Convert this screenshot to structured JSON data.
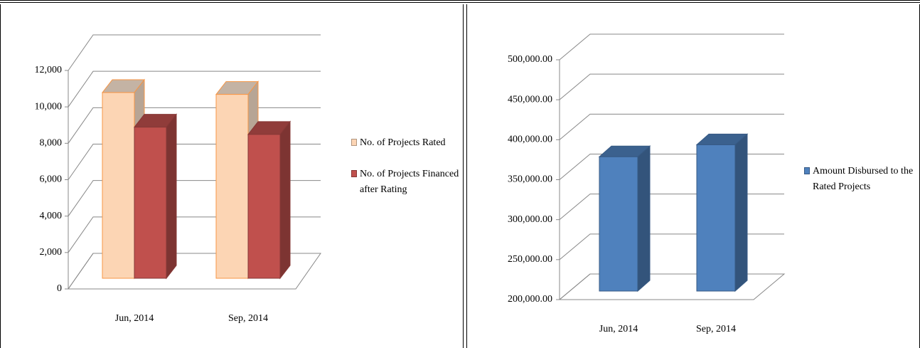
{
  "chart_data": [
    {
      "type": "bar3d",
      "categories": [
        "Jun, 2014",
        "Sep, 2014"
      ],
      "series": [
        {
          "name": "No. of Projects Rated",
          "color": "#fcd5b4",
          "values": [
            10200,
            10100
          ]
        },
        {
          "name": "No. of Projects Financed after Rating",
          "color": "#c0504d",
          "values": [
            8300,
            7900
          ]
        }
      ],
      "ylim": [
        0,
        12000
      ],
      "yticks": [
        0,
        {
          "value": 2000,
          "label": "2,000"
        },
        {
          "value": 4000,
          "label": "4,000"
        },
        {
          "value": 6000,
          "label": "6,000"
        },
        {
          "value": 8000,
          "label": "8,000"
        },
        {
          "value": 10000,
          "label": "10,000"
        },
        {
          "value": 12000,
          "label": "12,000"
        }
      ],
      "grid": true
    },
    {
      "type": "bar3d",
      "categories": [
        "Jun, 2014",
        "Sep, 2014"
      ],
      "series": [
        {
          "name": "Amount Disbursed to the Rated Projects",
          "color": "#4f81bd",
          "values": [
            368000,
            383000
          ]
        }
      ],
      "ylim": [
        200000,
        500000
      ],
      "yticks": [
        {
          "value": 200000,
          "label": "200,000.00"
        },
        {
          "value": 250000,
          "label": "250,000.00"
        },
        {
          "value": 300000,
          "label": "300,000.00"
        },
        {
          "value": 350000,
          "label": "350,000.00"
        },
        {
          "value": 400000,
          "label": "400,000.00"
        },
        {
          "value": 450000,
          "label": "450,000.00"
        },
        {
          "value": 500000,
          "label": "500,000.00"
        }
      ],
      "grid": true
    }
  ]
}
